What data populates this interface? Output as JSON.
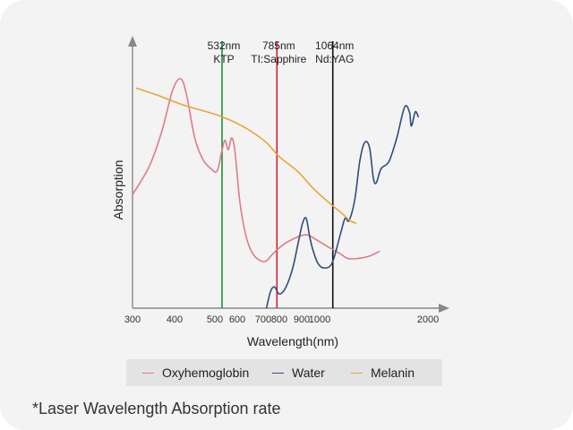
{
  "chart_data": {
    "type": "line",
    "title": "",
    "xlabel": "Wavelength(nm)",
    "ylabel": "Absorption",
    "x_ticks": [
      {
        "value": 300,
        "label": "300"
      },
      {
        "value": 400,
        "label": "400"
      },
      {
        "value": 500,
        "label": "500"
      },
      {
        "value": 600,
        "label": "600"
      },
      {
        "value": 700,
        "label": "700"
      },
      {
        "value": 800,
        "label": "800"
      },
      {
        "value": 900,
        "label": "900"
      },
      {
        "value": 1000,
        "label": "1000"
      },
      {
        "value": 2000,
        "label": "2000"
      }
    ],
    "y_range": [
      0,
      100
    ],
    "grid": false,
    "legend_position": "bottom",
    "markers": [
      {
        "wavelength": 532,
        "line1": "532nm",
        "line2": "KTP",
        "color": "#1e8f3a"
      },
      {
        "wavelength": 785,
        "line1": "785nm",
        "line2": "TI:Sapphire",
        "color": "#d4202c"
      },
      {
        "wavelength": 1064,
        "line1": "1064nm",
        "line2": "Nd:YAG",
        "color": "#111111"
      }
    ],
    "series": [
      {
        "name": "Oxyhemoglobin",
        "color": "#e07b88",
        "points": [
          [
            300,
            48
          ],
          [
            340,
            60
          ],
          [
            370,
            75
          ],
          [
            395,
            92
          ],
          [
            415,
            97
          ],
          [
            430,
            90
          ],
          [
            450,
            72
          ],
          [
            470,
            63
          ],
          [
            490,
            59
          ],
          [
            510,
            58
          ],
          [
            530,
            66
          ],
          [
            545,
            71
          ],
          [
            560,
            67
          ],
          [
            575,
            72
          ],
          [
            590,
            66
          ],
          [
            610,
            45
          ],
          [
            635,
            30
          ],
          [
            660,
            23
          ],
          [
            690,
            20
          ],
          [
            720,
            20
          ],
          [
            760,
            23
          ],
          [
            820,
            27
          ],
          [
            880,
            30
          ],
          [
            930,
            31
          ],
          [
            980,
            29
          ],
          [
            1040,
            26
          ],
          [
            1100,
            23
          ],
          [
            1180,
            21
          ],
          [
            1280,
            21
          ],
          [
            1400,
            22
          ],
          [
            1500,
            24
          ]
        ]
      },
      {
        "name": "Water",
        "color": "#2f4d7c",
        "points": [
          [
            720,
            0
          ],
          [
            745,
            7
          ],
          [
            770,
            9
          ],
          [
            800,
            6
          ],
          [
            830,
            9
          ],
          [
            860,
            17
          ],
          [
            885,
            28
          ],
          [
            905,
            36
          ],
          [
            925,
            38
          ],
          [
            945,
            30
          ],
          [
            965,
            24
          ],
          [
            990,
            19
          ],
          [
            1020,
            17
          ],
          [
            1060,
            19
          ],
          [
            1100,
            31
          ],
          [
            1150,
            38
          ],
          [
            1190,
            37
          ],
          [
            1250,
            46
          ],
          [
            1300,
            62
          ],
          [
            1350,
            70
          ],
          [
            1400,
            68
          ],
          [
            1440,
            55
          ],
          [
            1470,
            53
          ],
          [
            1520,
            59
          ],
          [
            1600,
            62
          ],
          [
            1680,
            72
          ],
          [
            1760,
            85
          ],
          [
            1810,
            83
          ],
          [
            1830,
            77
          ],
          [
            1870,
            83
          ],
          [
            1900,
            81
          ]
        ]
      },
      {
        "name": "Melanin",
        "color": "#e8a43a",
        "points": [
          [
            310,
            93
          ],
          [
            360,
            90
          ],
          [
            420,
            86
          ],
          [
            500,
            82
          ],
          [
            580,
            79
          ],
          [
            650,
            75
          ],
          [
            720,
            70
          ],
          [
            800,
            64
          ],
          [
            880,
            58
          ],
          [
            960,
            51
          ],
          [
            1040,
            45
          ],
          [
            1120,
            40
          ],
          [
            1200,
            37
          ],
          [
            1260,
            36
          ]
        ]
      }
    ]
  },
  "legend": {
    "items": [
      {
        "name": "Oxyhemoglobin",
        "color": "#e07b88"
      },
      {
        "name": "Water",
        "color": "#2f4d7c"
      },
      {
        "name": "Melanin",
        "color": "#e8a43a"
      }
    ]
  },
  "footnote": "*Laser Wavelength Absorption rate"
}
